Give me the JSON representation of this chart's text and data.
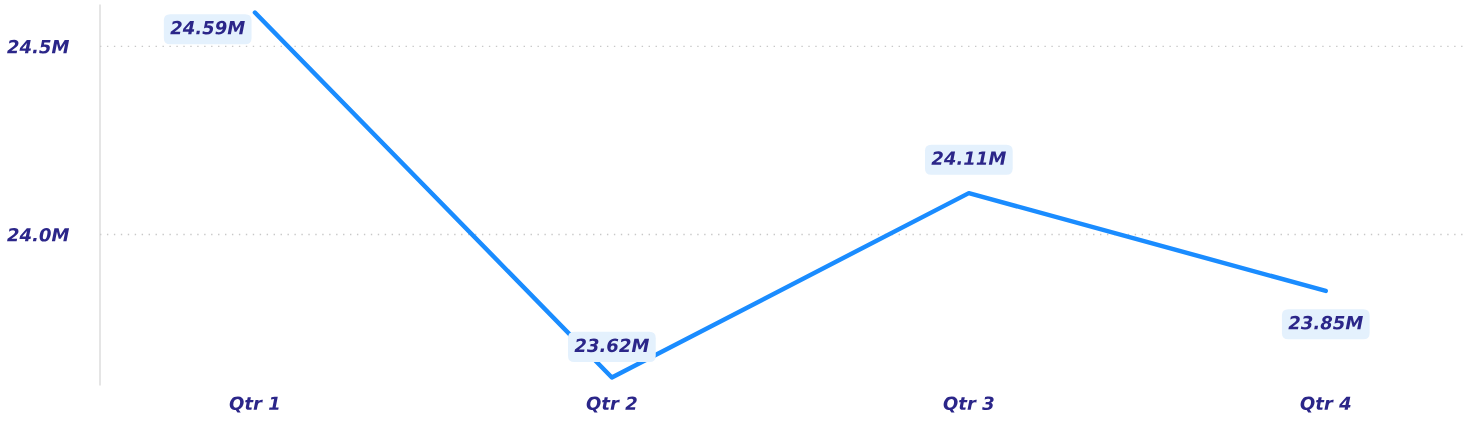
{
  "chart_data": {
    "type": "line",
    "categories": [
      "Qtr 1",
      "Qtr 2",
      "Qtr 3",
      "Qtr 4"
    ],
    "series": [
      {
        "color": "#1a8cff",
        "values": [
          24.59,
          23.62,
          24.11,
          23.85
        ]
      }
    ],
    "ylim": [
      23.6,
      24.61
    ],
    "yticks": [
      {
        "value": 24.0,
        "label": "24.0M"
      },
      {
        "value": 24.5,
        "label": "24.5M"
      }
    ],
    "value_labels": [
      "24.59M",
      "23.62M",
      "24.11M",
      "23.85M"
    ],
    "grid": "y",
    "marker": "none",
    "line_style": "solid"
  }
}
